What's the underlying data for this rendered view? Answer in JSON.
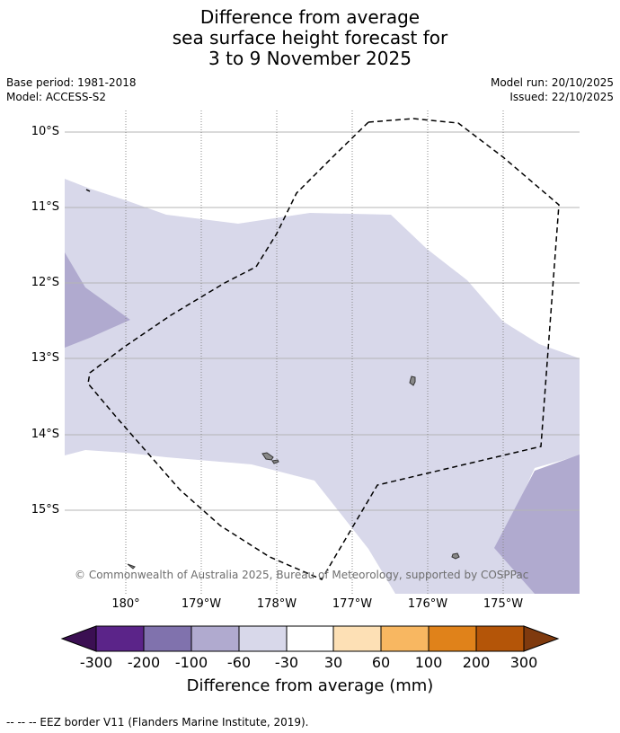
{
  "title": {
    "line1": "Difference from average",
    "line2": "sea surface height forecast for",
    "line3": "3 to 9 November 2025"
  },
  "meta": {
    "base_period": "Base period: 1981-2018",
    "model": "Model: ACCESS-S2",
    "model_run": "Model run: 20/10/2025",
    "issued": "Issued: 22/10/2025"
  },
  "map": {
    "lat_labels": [
      "10°S",
      "11°S",
      "12°S",
      "13°S",
      "14°S",
      "15°S"
    ],
    "lon_labels": [
      "180°",
      "179°W",
      "178°W",
      "177°W",
      "176°W",
      "175°W"
    ],
    "copyright": "© Commonwealth of Australia 2025, Bureau of Meteorology, supported by COSPPac",
    "colors": {
      "m300": "#3b0f52",
      "m200": "#5b2489",
      "m100": "#8072ad",
      "m60": "#b0aacf",
      "m30": "#d8d8ea",
      "neutral": "#ffffff",
      "p30": "#fde0b5",
      "p60": "#f8b761",
      "p100": "#e0821a",
      "p200": "#b45508",
      "p300": "#7f3a0e"
    }
  },
  "colorbar": {
    "ticks": [
      "-300",
      "-200",
      "-100",
      "-60",
      "-30",
      "30",
      "60",
      "100",
      "200",
      "300"
    ],
    "title": "Difference from average (mm)"
  },
  "footer": {
    "eez_note": "--  --  -- EEZ border V11 (Flanders Marine Institute, 2019)."
  }
}
